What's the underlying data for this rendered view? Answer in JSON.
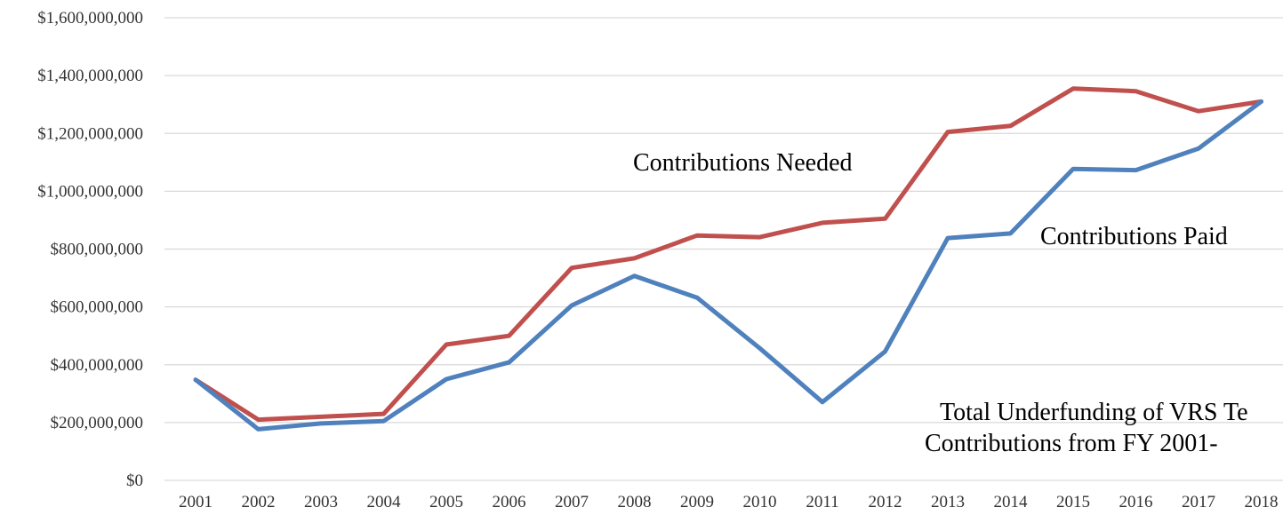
{
  "chart_data": {
    "type": "line",
    "title": "",
    "xlabel": "",
    "ylabel": "",
    "x": [
      "2001",
      "2002",
      "2003",
      "2004",
      "2005",
      "2006",
      "2007",
      "2008",
      "2009",
      "2010",
      "2011",
      "2012",
      "2013",
      "2014",
      "2015",
      "2016",
      "2017",
      "2018"
    ],
    "y_ticks": [
      "$0",
      "$200,000,000",
      "$400,000,000",
      "$600,000,000",
      "$800,000,000",
      "$1,000,000,000",
      "$1,200,000,000",
      "$1,400,000,000",
      "$1,600,000,000"
    ],
    "ylim": [
      0,
      1600000000
    ],
    "grid": true,
    "legend": "none",
    "series": [
      {
        "color": "#c0504d",
        "values": [
          348000000,
          210000000,
          220000000,
          230000000,
          470000000,
          500000000,
          735000000,
          768000000,
          847000000,
          841000000,
          891000000,
          905000000,
          1205000000,
          1226000000,
          1355000000,
          1346000000,
          1277000000,
          1310000000
        ]
      },
      {
        "color": "#4f81bd",
        "values": [
          348000000,
          177000000,
          197000000,
          205000000,
          350000000,
          408000000,
          605000000,
          707000000,
          632000000,
          457000000,
          271000000,
          446000000,
          838000000,
          854000000,
          1077000000,
          1073000000,
          1148000000,
          1310000000
        ]
      }
    ],
    "annotations": [
      {
        "text": "Contributions Needed"
      },
      {
        "text": "Contributions Paid"
      },
      {
        "text": "Total Underfunding of VRS Te"
      },
      {
        "text": "Contributions from FY 2001-"
      }
    ]
  }
}
